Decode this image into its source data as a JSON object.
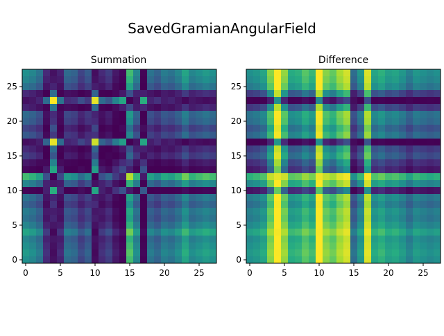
{
  "figure": {
    "suptitle": "SavedGramianAngularField"
  },
  "chart_data": [
    {
      "type": "heatmap",
      "title": "Summation",
      "colormap": "viridis",
      "size": 28,
      "xticks": [
        0,
        5,
        10,
        15,
        20,
        25
      ],
      "yticks": [
        0,
        5,
        10,
        15,
        20,
        25
      ],
      "xlim": [
        -0.5,
        27.5
      ],
      "ylim": [
        27.5,
        -0.5
      ],
      "series_vector": [
        -0.6,
        -0.55,
        -0.45,
        0.05,
        0.85,
        0.1,
        -0.4,
        -0.35,
        -0.15,
        -0.3,
        0.82,
        0.05,
        -0.1,
        0.2,
        0.4,
        -0.8,
        -0.55,
        0.45,
        -0.45,
        -0.35,
        -0.5,
        -0.45,
        -0.55,
        -0.7,
        -0.55,
        -0.6,
        -0.65,
        -0.6
      ]
    },
    {
      "type": "heatmap",
      "title": "Difference",
      "colormap": "viridis",
      "size": 28,
      "xticks": [
        0,
        5,
        10,
        15,
        20,
        25
      ],
      "yticks": [
        0,
        5,
        10,
        15,
        20,
        25
      ],
      "xlim": [
        -0.5,
        27.5
      ],
      "ylim": [
        27.5,
        -0.5
      ],
      "series_vector": [
        -0.6,
        -0.55,
        -0.45,
        0.05,
        0.85,
        0.1,
        -0.4,
        -0.35,
        -0.15,
        -0.3,
        0.82,
        0.05,
        -0.1,
        0.2,
        0.4,
        -0.8,
        -0.55,
        0.45,
        -0.45,
        -0.35,
        -0.5,
        -0.45,
        -0.55,
        -0.7,
        -0.55,
        -0.6,
        -0.65,
        -0.6
      ]
    }
  ]
}
